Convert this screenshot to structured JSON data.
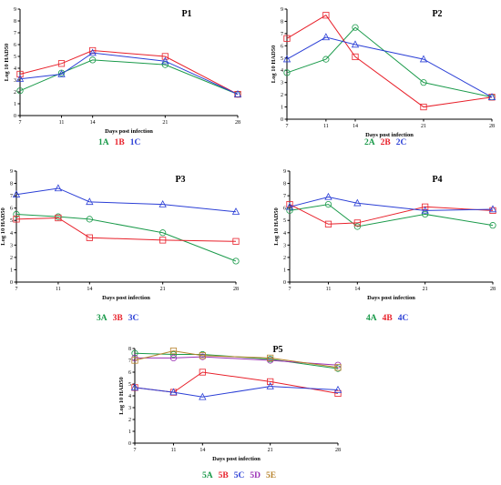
{
  "chart_data": [
    {
      "type": "line",
      "title": "P1",
      "xlabel": "Days post infection",
      "ylabel": "Log 10 HAD50",
      "x": [
        7,
        11,
        14,
        21,
        28
      ],
      "ylim": [
        0,
        9
      ],
      "yticks": [
        0,
        1,
        2,
        3,
        4,
        5,
        6,
        7,
        8,
        9
      ],
      "grid": false,
      "legend_position": "bottom",
      "series": [
        {
          "name": "1A",
          "color": "#1a9a4a",
          "marker": "circle",
          "values": [
            2.1,
            3.6,
            4.7,
            4.3,
            1.8
          ]
        },
        {
          "name": "1B",
          "color": "#e8202a",
          "marker": "square",
          "values": [
            3.5,
            4.4,
            5.5,
            5.0,
            1.8
          ]
        },
        {
          "name": "1C",
          "color": "#2b3fd6",
          "marker": "triangle",
          "values": [
            3.1,
            3.5,
            5.3,
            4.6,
            1.8
          ]
        }
      ]
    },
    {
      "type": "line",
      "title": "P2",
      "xlabel": "Days post infection",
      "ylabel": "Log 10 HAD50",
      "x": [
        7,
        11,
        14,
        21,
        28
      ],
      "ylim": [
        0,
        9
      ],
      "yticks": [
        0,
        1,
        2,
        3,
        4,
        5,
        6,
        7,
        8,
        9
      ],
      "grid": false,
      "legend_position": "bottom",
      "series": [
        {
          "name": "2A",
          "color": "#1a9a4a",
          "marker": "circle",
          "values": [
            3.8,
            4.9,
            7.5,
            3.0,
            1.8
          ]
        },
        {
          "name": "2B",
          "color": "#e8202a",
          "marker": "square",
          "values": [
            6.6,
            8.5,
            5.1,
            1.0,
            1.8
          ]
        },
        {
          "name": "2C",
          "color": "#2b3fd6",
          "marker": "triangle",
          "values": [
            4.9,
            6.7,
            6.1,
            4.9,
            1.8
          ]
        }
      ]
    },
    {
      "type": "line",
      "title": "P3",
      "xlabel": "Days post infection",
      "ylabel": "Log 10 HAD50",
      "x": [
        7,
        11,
        14,
        21,
        28
      ],
      "ylim": [
        0,
        9
      ],
      "yticks": [
        0,
        1,
        2,
        3,
        4,
        5,
        6,
        7,
        8,
        9
      ],
      "grid": false,
      "legend_position": "bottom",
      "series": [
        {
          "name": "3A",
          "color": "#1a9a4a",
          "marker": "circle",
          "values": [
            5.5,
            5.3,
            5.1,
            4.0,
            1.7
          ]
        },
        {
          "name": "3B",
          "color": "#e8202a",
          "marker": "square",
          "values": [
            5.1,
            5.2,
            3.6,
            3.4,
            3.3
          ]
        },
        {
          "name": "3C",
          "color": "#2b3fd6",
          "marker": "triangle",
          "values": [
            7.1,
            7.6,
            6.5,
            6.3,
            5.7
          ]
        }
      ]
    },
    {
      "type": "line",
      "title": "P4",
      "xlabel": "Days post infection",
      "ylabel": "Log 10 HAD50",
      "x": [
        7,
        11,
        14,
        21,
        28
      ],
      "ylim": [
        0,
        9
      ],
      "yticks": [
        0,
        1,
        2,
        3,
        4,
        5,
        6,
        7,
        8,
        9
      ],
      "grid": false,
      "legend_position": "bottom",
      "series": [
        {
          "name": "4A",
          "color": "#1a9a4a",
          "marker": "circle",
          "values": [
            5.8,
            6.3,
            4.5,
            5.5,
            4.6
          ]
        },
        {
          "name": "4B",
          "color": "#e8202a",
          "marker": "square",
          "values": [
            6.3,
            4.7,
            4.8,
            6.1,
            5.8
          ]
        },
        {
          "name": "4C",
          "color": "#2b3fd6",
          "marker": "triangle",
          "values": [
            6.1,
            6.9,
            6.4,
            5.8,
            5.9
          ]
        }
      ]
    },
    {
      "type": "line",
      "title": "P5",
      "xlabel": "Days post infection",
      "ylabel": "Log 10 HAD50",
      "x": [
        7,
        11,
        14,
        21,
        28
      ],
      "ylim": [
        0,
        8
      ],
      "yticks": [
        0,
        1,
        2,
        3,
        4,
        5,
        6,
        7,
        8
      ],
      "grid": false,
      "legend_position": "bottom",
      "series": [
        {
          "name": "5A",
          "color": "#1a9a4a",
          "marker": "circle",
          "values": [
            7.6,
            7.5,
            7.5,
            7.1,
            6.3
          ]
        },
        {
          "name": "5B",
          "color": "#e8202a",
          "marker": "square",
          "values": [
            4.7,
            4.3,
            6.0,
            5.2,
            4.2
          ]
        },
        {
          "name": "5C",
          "color": "#2b3fd6",
          "marker": "triangle",
          "values": [
            4.7,
            4.3,
            3.9,
            4.8,
            4.5
          ]
        },
        {
          "name": "5D",
          "color": "#9b30b5",
          "marker": "circle",
          "values": [
            7.2,
            7.2,
            7.3,
            7.0,
            6.6
          ]
        },
        {
          "name": "5E",
          "color": "#b8842e",
          "marker": "square",
          "values": [
            7.0,
            7.8,
            7.4,
            7.2,
            6.4
          ]
        }
      ]
    }
  ]
}
